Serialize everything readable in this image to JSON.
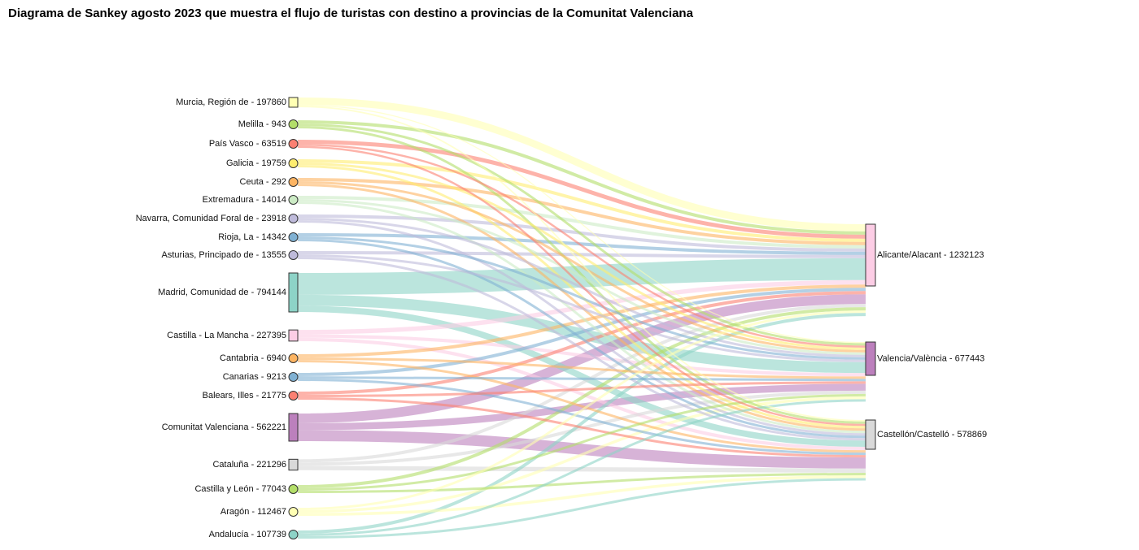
{
  "title": "Diagrama de Sankey agosto 2023 que muestra el flujo de turistas con destino a provincias de la Comunitat Valenciana",
  "chart_data": {
    "type": "sankey",
    "sources": [
      {
        "label": "Murcia, Región de - 197860",
        "color": "#ffffb3",
        "to": [
          0.74,
          0.11,
          0.15
        ]
      },
      {
        "label": "Melilla - 943",
        "color": "#b3de69",
        "to": [
          0.4,
          0.3,
          0.3
        ]
      },
      {
        "label": "País Vasco - 63519",
        "color": "#fb8072",
        "to": [
          0.5,
          0.25,
          0.25
        ]
      },
      {
        "label": "Galicia - 19759",
        "color": "#ffed6f",
        "to": [
          0.4,
          0.3,
          0.3
        ]
      },
      {
        "label": "Ceuta - 292",
        "color": "#fdb462",
        "to": [
          0.4,
          0.3,
          0.3
        ]
      },
      {
        "label": "Extremadura - 14014",
        "color": "#ccebc5",
        "to": [
          0.4,
          0.3,
          0.3
        ]
      },
      {
        "label": "Navarra, Comunidad Foral de - 23918",
        "color": "#bebada",
        "to": [
          0.4,
          0.3,
          0.3
        ]
      },
      {
        "label": "Rioja, La - 14342",
        "color": "#80b1d3",
        "to": [
          0.4,
          0.3,
          0.3
        ]
      },
      {
        "label": "Asturias, Principado de - 13555",
        "color": "#bebada",
        "to": [
          0.4,
          0.3,
          0.3
        ]
      },
      {
        "label": "Madrid, Comunidad de - 794144",
        "color": "#8dd3c7",
        "to": [
          0.56,
          0.28,
          0.16
        ]
      },
      {
        "label": "Castilla - La Mancha - 227395",
        "color": "#fccde5",
        "to": [
          0.4,
          0.3,
          0.3
        ]
      },
      {
        "label": "Cantabria - 6940",
        "color": "#fdb462",
        "to": [
          0.4,
          0.3,
          0.3
        ]
      },
      {
        "label": "Canarias - 9213",
        "color": "#80b1d3",
        "to": [
          0.4,
          0.3,
          0.3
        ]
      },
      {
        "label": "Balears, Illes - 21775",
        "color": "#fb8072",
        "to": [
          0.4,
          0.3,
          0.3
        ]
      },
      {
        "label": "Comunitat Valenciana - 562221",
        "color": "#bc80bd",
        "to": [
          0.35,
          0.25,
          0.4
        ]
      },
      {
        "label": "Cataluña - 221296",
        "color": "#d9d9d9",
        "to": [
          0.3,
          0.3,
          0.4
        ]
      },
      {
        "label": "Castilla y León - 77043",
        "color": "#b3de69",
        "to": [
          0.4,
          0.3,
          0.3
        ]
      },
      {
        "label": "Aragón - 112467",
        "color": "#ffffb3",
        "to": [
          0.3,
          0.35,
          0.35
        ]
      },
      {
        "label": "Andalucía - 107739",
        "color": "#8dd3c7",
        "to": [
          0.4,
          0.3,
          0.3
        ]
      }
    ],
    "targets": [
      {
        "label": "Alicante/Alacant - 1232123",
        "color": "#fccde5"
      },
      {
        "label": "Valencia/València - 677443",
        "color": "#bc80bd"
      },
      {
        "label": "Castellón/Castelló - 578869",
        "color": "#d9d9d9"
      }
    ]
  }
}
